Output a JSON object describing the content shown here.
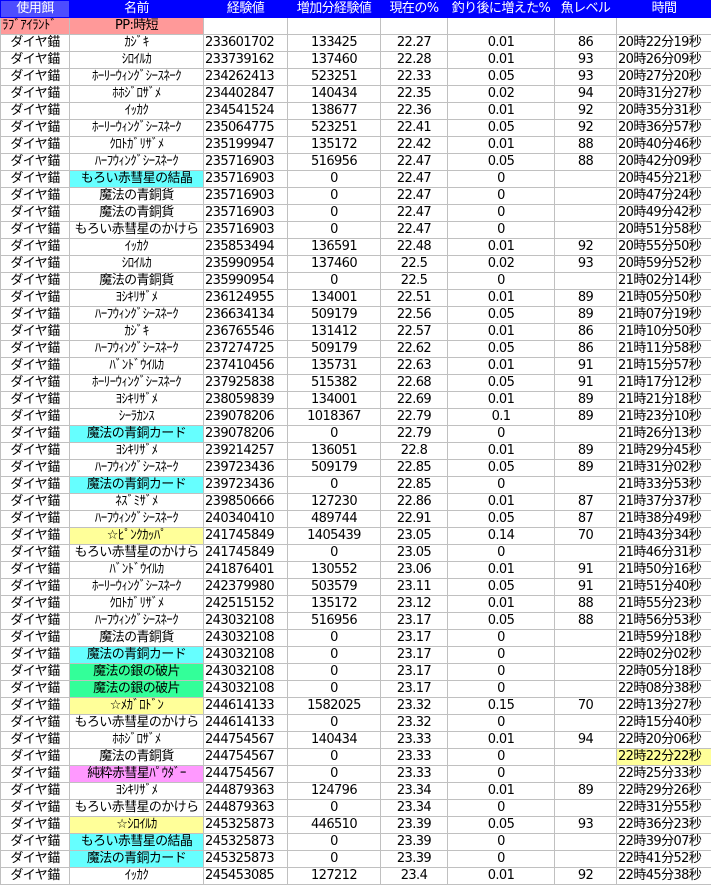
{
  "header": [
    "使用餌",
    "名前",
    "経験値",
    "増加分経験値",
    "現在の%",
    "釣り後に増えた%",
    "魚レベル",
    "時間"
  ],
  "info": {
    "location": "ﾗﾌﾞｱｲﾗﾝﾄﾞ",
    "pp": "PP:時短"
  },
  "highlight_colors": {
    "cyan": "#66ffff",
    "green": "#33ff99",
    "yellow": "#ffff99",
    "pink": "#ff99ff",
    "header": "#0000ff",
    "info": "#ff9999"
  },
  "rows": [
    {
      "bait": "ダイヤ錨",
      "name": "ｶｼﾞｷ",
      "exp": "233601702",
      "gain": "133425",
      "pct": "22.27",
      "inc": "0.01",
      "lv": "86",
      "time": "20時22分19秒"
    },
    {
      "bait": "ダイヤ錨",
      "name": "ｼﾛｲﾙｶ",
      "exp": "233739162",
      "gain": "137460",
      "pct": "22.28",
      "inc": "0.01",
      "lv": "93",
      "time": "20時26分09秒"
    },
    {
      "bait": "ダイヤ錨",
      "name": "ﾎｰﾘｰｳｨﾝｸﾞｼｰｽﾈｰｸ",
      "exp": "234262413",
      "gain": "523251",
      "pct": "22.33",
      "inc": "0.05",
      "lv": "93",
      "time": "20時27分20秒"
    },
    {
      "bait": "ダイヤ錨",
      "name": "ﾎﾎｼﾞﾛｻﾞﾒ",
      "exp": "234402847",
      "gain": "140434",
      "pct": "22.35",
      "inc": "0.02",
      "lv": "94",
      "time": "20時31分27秒"
    },
    {
      "bait": "ダイヤ錨",
      "name": "ｲｯｶｸ",
      "exp": "234541524",
      "gain": "138677",
      "pct": "22.36",
      "inc": "0.01",
      "lv": "92",
      "time": "20時35分31秒"
    },
    {
      "bait": "ダイヤ錨",
      "name": "ﾎｰﾘｰｳｨﾝｸﾞｼｰｽﾈｰｸ",
      "exp": "235064775",
      "gain": "523251",
      "pct": "22.41",
      "inc": "0.05",
      "lv": "92",
      "time": "20時36分57秒"
    },
    {
      "bait": "ダイヤ錨",
      "name": "ｸﾛﾄｶﾞﾘｻﾞﾒ",
      "exp": "235199947",
      "gain": "135172",
      "pct": "22.42",
      "inc": "0.01",
      "lv": "88",
      "time": "20時40分46秒"
    },
    {
      "bait": "ダイヤ錨",
      "name": "ﾊｰﾌｳｨﾝｸﾞｼｰｽﾈｰｸ",
      "exp": "235716903",
      "gain": "516956",
      "pct": "22.47",
      "inc": "0.05",
      "lv": "88",
      "time": "20時42分09秒"
    },
    {
      "bait": "ダイヤ錨",
      "name": "もろい赤彗星の結晶",
      "exp": "235716903",
      "gain": "0",
      "pct": "22.47",
      "inc": "0",
      "lv": "",
      "time": "20時45分21秒",
      "hl": "cyan"
    },
    {
      "bait": "ダイヤ錨",
      "name": "魔法の青銅貨",
      "exp": "235716903",
      "gain": "0",
      "pct": "22.47",
      "inc": "0",
      "lv": "",
      "time": "20時47分24秒"
    },
    {
      "bait": "ダイヤ錨",
      "name": "魔法の青銅貨",
      "exp": "235716903",
      "gain": "0",
      "pct": "22.47",
      "inc": "0",
      "lv": "",
      "time": "20時49分42秒"
    },
    {
      "bait": "ダイヤ錨",
      "name": "もろい赤彗星のかけら",
      "exp": "235716903",
      "gain": "0",
      "pct": "22.47",
      "inc": "0",
      "lv": "",
      "time": "20時51分58秒"
    },
    {
      "bait": "ダイヤ錨",
      "name": "ｲｯｶｸ",
      "exp": "235853494",
      "gain": "136591",
      "pct": "22.48",
      "inc": "0.01",
      "lv": "92",
      "time": "20時55分50秒"
    },
    {
      "bait": "ダイヤ錨",
      "name": "ｼﾛｲﾙｶ",
      "exp": "235990954",
      "gain": "137460",
      "pct": "22.5",
      "inc": "0.02",
      "lv": "93",
      "time": "20時59分52秒"
    },
    {
      "bait": "ダイヤ錨",
      "name": "魔法の青銅貨",
      "exp": "235990954",
      "gain": "0",
      "pct": "22.5",
      "inc": "0",
      "lv": "",
      "time": "21時02分14秒"
    },
    {
      "bait": "ダイヤ錨",
      "name": "ﾖｼｷﾘｻﾞﾒ",
      "exp": "236124955",
      "gain": "134001",
      "pct": "22.51",
      "inc": "0.01",
      "lv": "89",
      "time": "21時05分50秒"
    },
    {
      "bait": "ダイヤ錨",
      "name": "ﾊｰﾌｳｨﾝｸﾞｼｰｽﾈｰｸ",
      "exp": "236634134",
      "gain": "509179",
      "pct": "22.56",
      "inc": "0.05",
      "lv": "89",
      "time": "21時07分19秒"
    },
    {
      "bait": "ダイヤ錨",
      "name": "ｶｼﾞｷ",
      "exp": "236765546",
      "gain": "131412",
      "pct": "22.57",
      "inc": "0.01",
      "lv": "86",
      "time": "21時10分50秒"
    },
    {
      "bait": "ダイヤ錨",
      "name": "ﾊｰﾌｳｨﾝｸﾞｼｰｽﾈｰｸ",
      "exp": "237274725",
      "gain": "509179",
      "pct": "22.62",
      "inc": "0.05",
      "lv": "86",
      "time": "21時11分58秒"
    },
    {
      "bait": "ダイヤ錨",
      "name": "ﾊﾞﾝﾄﾞｳｲﾙｶ",
      "exp": "237410456",
      "gain": "135731",
      "pct": "22.63",
      "inc": "0.01",
      "lv": "91",
      "time": "21時15分57秒"
    },
    {
      "bait": "ダイヤ錨",
      "name": "ﾎｰﾘｰｳｨﾝｸﾞｼｰｽﾈｰｸ",
      "exp": "237925838",
      "gain": "515382",
      "pct": "22.68",
      "inc": "0.05",
      "lv": "91",
      "time": "21時17分12秒"
    },
    {
      "bait": "ダイヤ錨",
      "name": "ﾖｼｷﾘｻﾞﾒ",
      "exp": "238059839",
      "gain": "134001",
      "pct": "22.69",
      "inc": "0.01",
      "lv": "89",
      "time": "21時21分18秒"
    },
    {
      "bait": "ダイヤ錨",
      "name": "ｼｰﾗｶﾝｽ",
      "exp": "239078206",
      "gain": "1018367",
      "pct": "22.79",
      "inc": "0.1",
      "lv": "89",
      "time": "21時23分10秒"
    },
    {
      "bait": "ダイヤ錨",
      "name": "魔法の青銅カード",
      "exp": "239078206",
      "gain": "0",
      "pct": "22.79",
      "inc": "0",
      "lv": "",
      "time": "21時26分13秒",
      "hl": "cyan"
    },
    {
      "bait": "ダイヤ錨",
      "name": "ﾖｼｷﾘｻﾞﾒ",
      "exp": "239214257",
      "gain": "136051",
      "pct": "22.8",
      "inc": "0.01",
      "lv": "89",
      "time": "21時29分45秒"
    },
    {
      "bait": "ダイヤ錨",
      "name": "ﾊｰﾌｳｨﾝｸﾞｼｰｽﾈｰｸ",
      "exp": "239723436",
      "gain": "509179",
      "pct": "22.85",
      "inc": "0.05",
      "lv": "89",
      "time": "21時31分02秒"
    },
    {
      "bait": "ダイヤ錨",
      "name": "魔法の青銅カード",
      "exp": "239723436",
      "gain": "0",
      "pct": "22.85",
      "inc": "0",
      "lv": "",
      "time": "21時33分53秒",
      "hl": "cyan"
    },
    {
      "bait": "ダイヤ錨",
      "name": "ﾈｽﾞﾐｻﾞﾒ",
      "exp": "239850666",
      "gain": "127230",
      "pct": "22.86",
      "inc": "0.01",
      "lv": "87",
      "time": "21時37分37秒"
    },
    {
      "bait": "ダイヤ錨",
      "name": "ﾊｰﾌｳｨﾝｸﾞｼｰｽﾈｰｸ",
      "exp": "240340410",
      "gain": "489744",
      "pct": "22.91",
      "inc": "0.05",
      "lv": "87",
      "time": "21時38分49秒"
    },
    {
      "bait": "ダイヤ錨",
      "name": "☆ﾋﾟﾝｸｶｯﾊﾟ",
      "exp": "241745849",
      "gain": "1405439",
      "pct": "23.05",
      "inc": "0.14",
      "lv": "70",
      "time": "21時43分34秒",
      "hl": "yellow"
    },
    {
      "bait": "ダイヤ錨",
      "name": "もろい赤彗星のかけら",
      "exp": "241745849",
      "gain": "0",
      "pct": "23.05",
      "inc": "0",
      "lv": "",
      "time": "21時46分31秒"
    },
    {
      "bait": "ダイヤ錨",
      "name": "ﾊﾞﾝﾄﾞｳｲﾙｶ",
      "exp": "241876401",
      "gain": "130552",
      "pct": "23.06",
      "inc": "0.01",
      "lv": "91",
      "time": "21時50分16秒"
    },
    {
      "bait": "ダイヤ錨",
      "name": "ﾎｰﾘｰｳｨﾝｸﾞｼｰｽﾈｰｸ",
      "exp": "242379980",
      "gain": "503579",
      "pct": "23.11",
      "inc": "0.05",
      "lv": "91",
      "time": "21時51分40秒"
    },
    {
      "bait": "ダイヤ錨",
      "name": "ｸﾛﾄｶﾞﾘｻﾞﾒ",
      "exp": "242515152",
      "gain": "135172",
      "pct": "23.12",
      "inc": "0.01",
      "lv": "88",
      "time": "21時55分23秒"
    },
    {
      "bait": "ダイヤ錨",
      "name": "ﾊｰﾌｳｨﾝｸﾞｼｰｽﾈｰｸ",
      "exp": "243032108",
      "gain": "516956",
      "pct": "23.17",
      "inc": "0.05",
      "lv": "88",
      "time": "21時56分53秒"
    },
    {
      "bait": "ダイヤ錨",
      "name": "魔法の青銅貨",
      "exp": "243032108",
      "gain": "0",
      "pct": "23.17",
      "inc": "0",
      "lv": "",
      "time": "21時59分18秒"
    },
    {
      "bait": "ダイヤ錨",
      "name": "魔法の青銅カード",
      "exp": "243032108",
      "gain": "0",
      "pct": "23.17",
      "inc": "0",
      "lv": "",
      "time": "22時02分02秒",
      "hl": "cyan"
    },
    {
      "bait": "ダイヤ錨",
      "name": "魔法の銀の破片",
      "exp": "243032108",
      "gain": "0",
      "pct": "23.17",
      "inc": "0",
      "lv": "",
      "time": "22時05分18秒",
      "hl": "green"
    },
    {
      "bait": "ダイヤ錨",
      "name": "魔法の銀の破片",
      "exp": "243032108",
      "gain": "0",
      "pct": "23.17",
      "inc": "0",
      "lv": "",
      "time": "22時08分38秒",
      "hl": "green"
    },
    {
      "bait": "ダイヤ錨",
      "name": "☆ﾒｶﾞﾛﾄﾞﾝ",
      "exp": "244614133",
      "gain": "1582025",
      "pct": "23.32",
      "inc": "0.15",
      "lv": "70",
      "time": "22時13分27秒",
      "hl": "yellow"
    },
    {
      "bait": "ダイヤ錨",
      "name": "もろい赤彗星のかけら",
      "exp": "244614133",
      "gain": "0",
      "pct": "23.32",
      "inc": "0",
      "lv": "",
      "time": "22時15分40秒"
    },
    {
      "bait": "ダイヤ錨",
      "name": "ﾎﾎｼﾞﾛｻﾞﾒ",
      "exp": "244754567",
      "gain": "140434",
      "pct": "23.33",
      "inc": "0.01",
      "lv": "94",
      "time": "22時20分06秒"
    },
    {
      "bait": "ダイヤ錨",
      "name": "魔法の青銅貨",
      "exp": "244754567",
      "gain": "0",
      "pct": "23.33",
      "inc": "0",
      "lv": "",
      "time": "22時22分22秒",
      "time_hl": "yellow"
    },
    {
      "bait": "ダイヤ錨",
      "name": "純粋赤彗星ﾊﾟｳﾀﾞｰ",
      "exp": "244754567",
      "gain": "0",
      "pct": "23.33",
      "inc": "0",
      "lv": "",
      "time": "22時25分33秒",
      "hl": "pink"
    },
    {
      "bait": "ダイヤ錨",
      "name": "ﾖｼｷﾘｻﾞﾒ",
      "exp": "244879363",
      "gain": "124796",
      "pct": "23.34",
      "inc": "0.01",
      "lv": "89",
      "time": "22時29分26秒"
    },
    {
      "bait": "ダイヤ錨",
      "name": "もろい赤彗星のかけら",
      "exp": "244879363",
      "gain": "0",
      "pct": "23.34",
      "inc": "0",
      "lv": "",
      "time": "22時31分55秒"
    },
    {
      "bait": "ダイヤ錨",
      "name": "☆ｼﾛｲﾙｶ",
      "exp": "245325873",
      "gain": "446510",
      "pct": "23.39",
      "inc": "0.05",
      "lv": "93",
      "time": "22時36分23秒",
      "hl": "yellow"
    },
    {
      "bait": "ダイヤ錨",
      "name": "もろい赤彗星の結晶",
      "exp": "245325873",
      "gain": "0",
      "pct": "23.39",
      "inc": "0",
      "lv": "",
      "time": "22時39分07秒",
      "hl": "cyan"
    },
    {
      "bait": "ダイヤ錨",
      "name": "魔法の青銅カード",
      "exp": "245325873",
      "gain": "0",
      "pct": "23.39",
      "inc": "0",
      "lv": "",
      "time": "22時41分52秒",
      "hl": "cyan"
    },
    {
      "bait": "ダイヤ錨",
      "name": "ｲｯｶｸ",
      "exp": "245453085",
      "gain": "127212",
      "pct": "23.4",
      "inc": "0.01",
      "lv": "92",
      "time": "22時45分38秒"
    }
  ]
}
